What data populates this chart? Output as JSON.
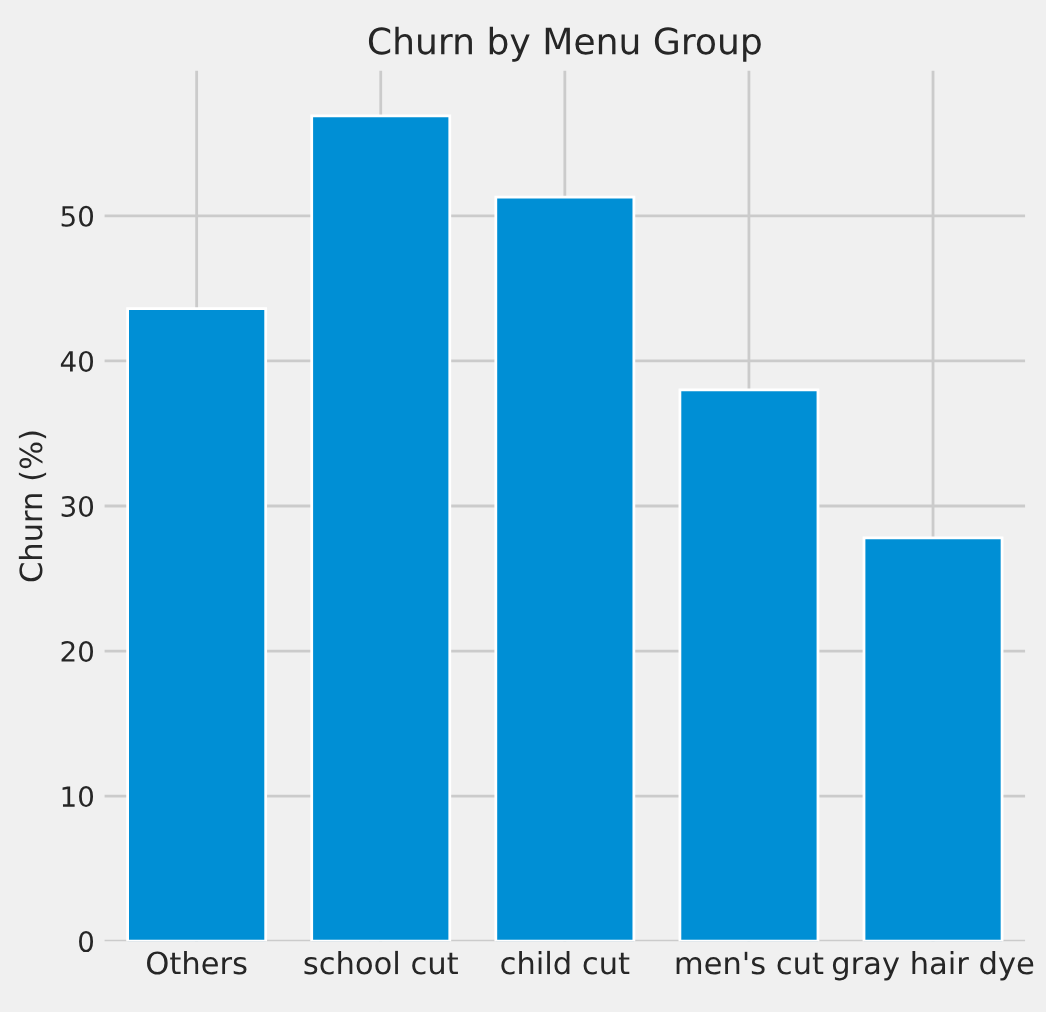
{
  "chart_data": {
    "type": "bar",
    "title": "Churn by Menu Group",
    "ylabel": "Churn (%)",
    "categories": [
      "Others",
      "school cut",
      "child cut",
      "men's cut",
      "gray hair dye"
    ],
    "values": [
      43.6,
      56.9,
      51.3,
      38.0,
      27.8
    ],
    "color": "#008fd5",
    "ylim": [
      0,
      60
    ],
    "yticks": [
      0,
      10,
      20,
      30,
      40,
      50
    ],
    "grid": true
  }
}
